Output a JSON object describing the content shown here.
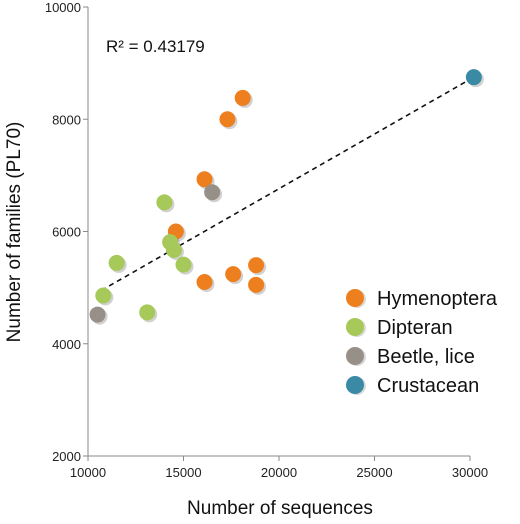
{
  "chart_data": {
    "type": "scatter",
    "xlabel": "Number of sequences",
    "ylabel": "Number of families (PL70)",
    "xlim": [
      10000,
      30000
    ],
    "ylim": [
      2000,
      10000
    ],
    "x_ticks": [
      10000,
      15000,
      20000,
      25000,
      30000
    ],
    "y_ticks": [
      2000,
      4000,
      6000,
      8000,
      10000
    ],
    "x_tick_labels": [
      "10000",
      "15000",
      "20000",
      "25000",
      "30000"
    ],
    "y_tick_labels": [
      "2000",
      "4000",
      "6000",
      "8000",
      "10000"
    ],
    "grid": false,
    "legend_position": "right",
    "annotation": "R² = 0.43179",
    "trendline": {
      "style": "dashed",
      "from": [
        10700,
        4950
      ],
      "to": [
        30200,
        8750
      ]
    },
    "series": [
      {
        "name": "Hymenoptera",
        "color": "#ee7f1f",
        "points": [
          {
            "x": 17300,
            "y": 8000
          },
          {
            "x": 18100,
            "y": 8380
          },
          {
            "x": 16100,
            "y": 6930
          },
          {
            "x": 14600,
            "y": 6000
          },
          {
            "x": 16100,
            "y": 5100
          },
          {
            "x": 17600,
            "y": 5240
          },
          {
            "x": 18800,
            "y": 5400
          },
          {
            "x": 18800,
            "y": 5050
          }
        ]
      },
      {
        "name": "Dipteran",
        "color": "#a6c95a",
        "points": [
          {
            "x": 14000,
            "y": 6520
          },
          {
            "x": 14300,
            "y": 5810
          },
          {
            "x": 14500,
            "y": 5670
          },
          {
            "x": 15000,
            "y": 5410
          },
          {
            "x": 11500,
            "y": 5440
          },
          {
            "x": 10800,
            "y": 4860
          },
          {
            "x": 13100,
            "y": 4560
          }
        ]
      },
      {
        "name": "Beetle, lice",
        "color": "#979089",
        "points": [
          {
            "x": 16500,
            "y": 6700
          },
          {
            "x": 10500,
            "y": 4520
          }
        ]
      },
      {
        "name": "Crustacean",
        "color": "#3a8aa6",
        "points": [
          {
            "x": 30200,
            "y": 8750
          }
        ]
      }
    ]
  }
}
